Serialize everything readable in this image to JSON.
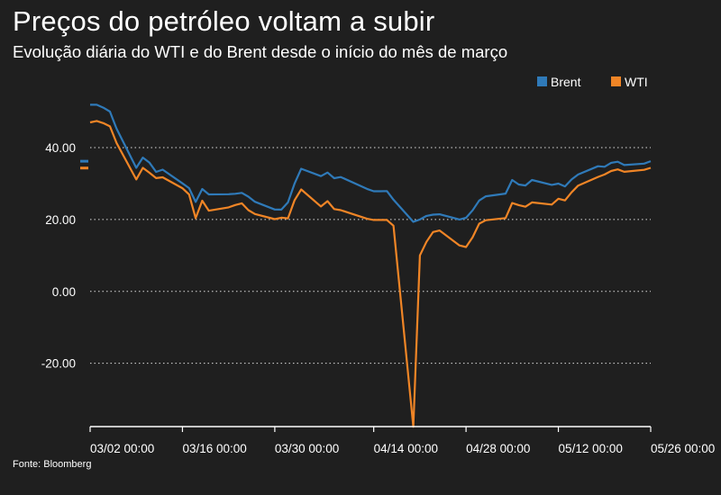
{
  "title": "Preços do petróleo voltam a subir",
  "subtitle": "Evolução diária do WTI e do Brent desde o início do mês de março",
  "source": "Fonte: Bloomberg",
  "chart_data": {
    "type": "line",
    "title": "Preços do petróleo voltam a subir",
    "subtitle": "Evolução diária do WTI e do Brent desde o início do mês de março",
    "legend_position": "top-right",
    "grid": "horizontal dotted",
    "x_start": "2020-03-02",
    "x_end": "2020-05-26",
    "xticks": [
      "2020-03-02",
      "2020-03-16",
      "2020-03-30",
      "2020-04-14",
      "2020-04-28",
      "2020-05-12",
      "2020-05-26"
    ],
    "xtick_labels": [
      "03/02 00:00",
      "03/16 00:00",
      "03/30 00:00",
      "04/14 00:00",
      "04/28 00:00",
      "05/12 00:00",
      "05/26 00:00"
    ],
    "yticks": [
      40,
      20,
      0,
      -20
    ],
    "ytick_labels": [
      "40.00",
      "20.00",
      "0.00",
      "-20.00"
    ],
    "ylim": [
      -37.6,
      52
    ],
    "series": [
      {
        "name": "Brent",
        "color": "#2f7ab9",
        "last_value": 36.2,
        "points": [
          [
            "2020-03-02",
            51.9
          ],
          [
            "2020-03-03",
            51.9
          ],
          [
            "2020-03-04",
            51.1
          ],
          [
            "2020-03-05",
            49.99
          ],
          [
            "2020-03-06",
            45.27
          ],
          [
            "2020-03-09",
            34.36
          ],
          [
            "2020-03-10",
            37.22
          ],
          [
            "2020-03-11",
            35.79
          ],
          [
            "2020-03-12",
            33.22
          ],
          [
            "2020-03-13",
            33.85
          ],
          [
            "2020-03-16",
            30.05
          ],
          [
            "2020-03-17",
            28.73
          ],
          [
            "2020-03-18",
            24.88
          ],
          [
            "2020-03-19",
            28.47
          ],
          [
            "2020-03-20",
            26.98
          ],
          [
            "2020-03-23",
            27.03
          ],
          [
            "2020-03-24",
            27.15
          ],
          [
            "2020-03-25",
            27.39
          ],
          [
            "2020-03-26",
            26.34
          ],
          [
            "2020-03-27",
            24.93
          ],
          [
            "2020-03-30",
            22.76
          ],
          [
            "2020-03-31",
            22.74
          ],
          [
            "2020-04-01",
            24.74
          ],
          [
            "2020-04-02",
            29.94
          ],
          [
            "2020-04-03",
            34.11
          ],
          [
            "2020-04-06",
            32.05
          ],
          [
            "2020-04-07",
            33.05
          ],
          [
            "2020-04-08",
            31.48
          ],
          [
            "2020-04-09",
            31.8
          ],
          [
            "2020-04-13",
            28.5
          ],
          [
            "2020-04-14",
            27.85
          ],
          [
            "2020-04-15",
            27.85
          ],
          [
            "2020-04-16",
            27.9
          ],
          [
            "2020-04-17",
            25.5
          ],
          [
            "2020-04-20",
            19.33
          ],
          [
            "2020-04-21",
            20.0
          ],
          [
            "2020-04-22",
            20.99
          ],
          [
            "2020-04-23",
            21.33
          ],
          [
            "2020-04-24",
            21.44
          ],
          [
            "2020-04-27",
            19.99
          ],
          [
            "2020-04-28",
            20.46
          ],
          [
            "2020-04-29",
            22.54
          ],
          [
            "2020-04-30",
            25.27
          ],
          [
            "2020-05-01",
            26.44
          ],
          [
            "2020-05-04",
            27.2
          ],
          [
            "2020-05-05",
            30.97
          ],
          [
            "2020-05-06",
            29.72
          ],
          [
            "2020-05-07",
            29.46
          ],
          [
            "2020-05-08",
            30.97
          ],
          [
            "2020-05-11",
            29.63
          ],
          [
            "2020-05-12",
            29.98
          ],
          [
            "2020-05-13",
            29.19
          ],
          [
            "2020-05-14",
            31.13
          ],
          [
            "2020-05-15",
            32.5
          ],
          [
            "2020-05-18",
            34.81
          ],
          [
            "2020-05-19",
            34.65
          ],
          [
            "2020-05-20",
            35.75
          ],
          [
            "2020-05-21",
            36.06
          ],
          [
            "2020-05-22",
            35.13
          ],
          [
            "2020-05-25",
            35.53
          ],
          [
            "2020-05-26",
            36.2
          ]
        ]
      },
      {
        "name": "WTI",
        "color": "#f08526",
        "last_value": 34.3,
        "points": [
          [
            "2020-03-02",
            47.0
          ],
          [
            "2020-03-03",
            47.4
          ],
          [
            "2020-03-04",
            46.8
          ],
          [
            "2020-03-05",
            45.9
          ],
          [
            "2020-03-06",
            41.28
          ],
          [
            "2020-03-09",
            31.13
          ],
          [
            "2020-03-10",
            34.36
          ],
          [
            "2020-03-11",
            32.98
          ],
          [
            "2020-03-12",
            31.5
          ],
          [
            "2020-03-13",
            31.73
          ],
          [
            "2020-03-16",
            28.7
          ],
          [
            "2020-03-17",
            26.95
          ],
          [
            "2020-03-18",
            20.37
          ],
          [
            "2020-03-19",
            25.22
          ],
          [
            "2020-03-20",
            22.43
          ],
          [
            "2020-03-23",
            23.36
          ],
          [
            "2020-03-24",
            24.01
          ],
          [
            "2020-03-25",
            24.49
          ],
          [
            "2020-03-26",
            22.6
          ],
          [
            "2020-03-27",
            21.51
          ],
          [
            "2020-03-30",
            20.09
          ],
          [
            "2020-03-31",
            20.48
          ],
          [
            "2020-04-01",
            20.31
          ],
          [
            "2020-04-02",
            25.32
          ],
          [
            "2020-04-03",
            28.34
          ],
          [
            "2020-04-06",
            23.63
          ],
          [
            "2020-04-07",
            25.09
          ],
          [
            "2020-04-08",
            22.9
          ],
          [
            "2020-04-09",
            22.6
          ],
          [
            "2020-04-13",
            20.2
          ],
          [
            "2020-04-14",
            19.87
          ],
          [
            "2020-04-15",
            19.87
          ],
          [
            "2020-04-16",
            19.87
          ],
          [
            "2020-04-17",
            18.27
          ],
          [
            "2020-04-20",
            -37.63
          ],
          [
            "2020-04-21",
            10.01
          ],
          [
            "2020-04-22",
            13.78
          ],
          [
            "2020-04-23",
            16.5
          ],
          [
            "2020-04-24",
            16.94
          ],
          [
            "2020-04-27",
            12.78
          ],
          [
            "2020-04-28",
            12.34
          ],
          [
            "2020-04-29",
            15.06
          ],
          [
            "2020-04-30",
            18.84
          ],
          [
            "2020-05-01",
            19.78
          ],
          [
            "2020-05-04",
            20.39
          ],
          [
            "2020-05-05",
            24.56
          ],
          [
            "2020-05-06",
            23.99
          ],
          [
            "2020-05-07",
            23.55
          ],
          [
            "2020-05-08",
            24.74
          ],
          [
            "2020-05-11",
            24.14
          ],
          [
            "2020-05-12",
            25.78
          ],
          [
            "2020-05-13",
            25.29
          ],
          [
            "2020-05-14",
            27.56
          ],
          [
            "2020-05-15",
            29.43
          ],
          [
            "2020-05-18",
            31.82
          ],
          [
            "2020-05-19",
            32.5
          ],
          [
            "2020-05-20",
            33.49
          ],
          [
            "2020-05-21",
            33.92
          ],
          [
            "2020-05-22",
            33.25
          ],
          [
            "2020-05-25",
            33.8
          ],
          [
            "2020-05-26",
            34.35
          ]
        ]
      }
    ]
  }
}
